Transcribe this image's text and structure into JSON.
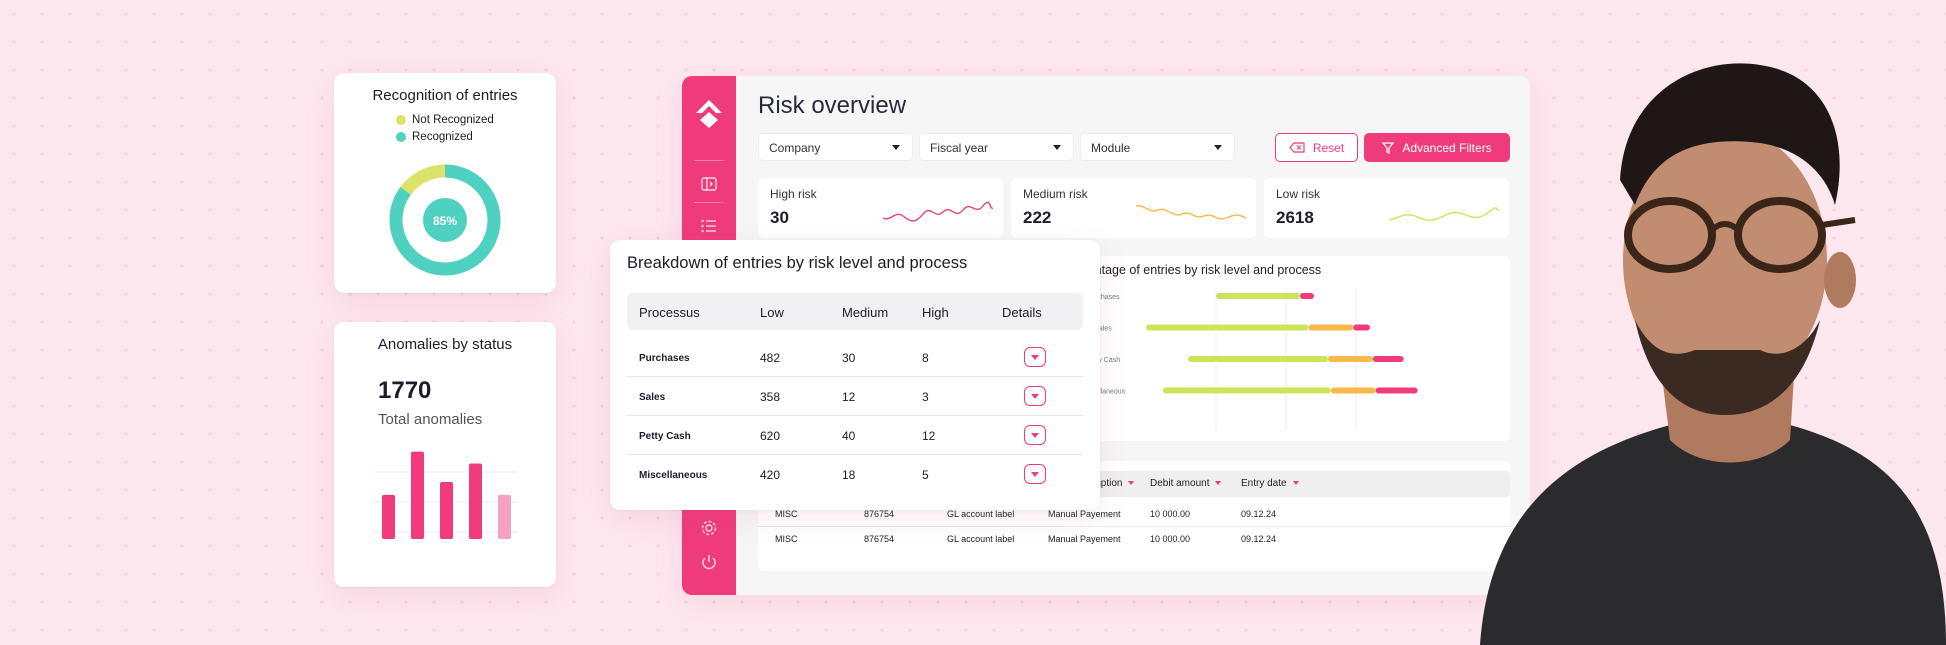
{
  "recognition": {
    "title": "Recognition of entries",
    "legend": [
      {
        "label": "Not Recognized",
        "color": "#dbe36a"
      },
      {
        "label": "Recognized",
        "color": "#4fd1c2"
      }
    ],
    "center_label": "85%",
    "recognized_fraction": 0.85
  },
  "anomalies": {
    "title": "Anomalies by status",
    "total": "1770",
    "total_label": "Total anomalies",
    "bars": [
      0.48,
      0.95,
      0.62,
      0.82,
      0.48
    ],
    "bar_colors": [
      "#ef3b7c",
      "#ef3b7c",
      "#ef3b7c",
      "#ef3b7c",
      "#f7a0c0"
    ]
  },
  "app": {
    "title": "Risk overview",
    "filters": [
      {
        "label": "Company"
      },
      {
        "label": "Fiscal year"
      },
      {
        "label": "Module"
      }
    ],
    "reset_label": "Reset",
    "advanced_label": "Advanced Filters",
    "kpis": [
      {
        "label": "High risk",
        "value": "30",
        "color": "#ef3b7c"
      },
      {
        "label": "Medium risk",
        "value": "222",
        "color": "#f6b94a"
      },
      {
        "label": "Low risk",
        "value": "2618",
        "color": "#cde35a"
      }
    ],
    "percentage_chart": {
      "title": "Percentage of entries by risk level and process",
      "categories": [
        "Purchases",
        "Sales",
        "Petty Cash",
        "Miscellaneous"
      ],
      "series": [
        {
          "color": "#cde35a",
          "values": [
            [
              0.25,
              0.55
            ],
            [
              0.0,
              0.58
            ],
            [
              0.15,
              0.65
            ],
            [
              0.06,
              0.66
            ]
          ]
        },
        {
          "color": "#f6b94a",
          "values": [
            [
              0.55,
              0.55
            ],
            [
              0.58,
              0.74
            ],
            [
              0.65,
              0.81
            ],
            [
              0.66,
              0.82
            ]
          ]
        },
        {
          "color": "#ef3b7c",
          "values": [
            [
              0.55,
              0.6
            ],
            [
              0.74,
              0.8
            ],
            [
              0.81,
              0.92
            ],
            [
              0.82,
              0.97
            ]
          ]
        }
      ]
    },
    "entries": {
      "headers": [
        "Entry description",
        "Debit amount",
        "Entry date"
      ],
      "rows": [
        [
          "MISC",
          "876754",
          "GL account label",
          "Manual Payement",
          "10 000.00",
          "09.12.24"
        ],
        [
          "MISC",
          "876754",
          "GL account label",
          "Manual Payement",
          "10 000.00",
          "09.12.24"
        ]
      ]
    }
  },
  "breakdown": {
    "title": "Breakdown of entries by risk level and process",
    "headers": [
      "Processus",
      "Low",
      "Medium",
      "High",
      "Details"
    ],
    "rows": [
      {
        "process": "Purchases",
        "low": "482",
        "medium": "30",
        "high": "8"
      },
      {
        "process": "Sales",
        "low": "358",
        "medium": "12",
        "high": "3"
      },
      {
        "process": "Petty Cash",
        "low": "620",
        "medium": "40",
        "high": "12"
      },
      {
        "process": "Miscellaneous",
        "low": "420",
        "medium": "18",
        "high": "5"
      }
    ]
  },
  "colors": {
    "accent": "#ef3b7c",
    "background": "#fde7ee"
  }
}
